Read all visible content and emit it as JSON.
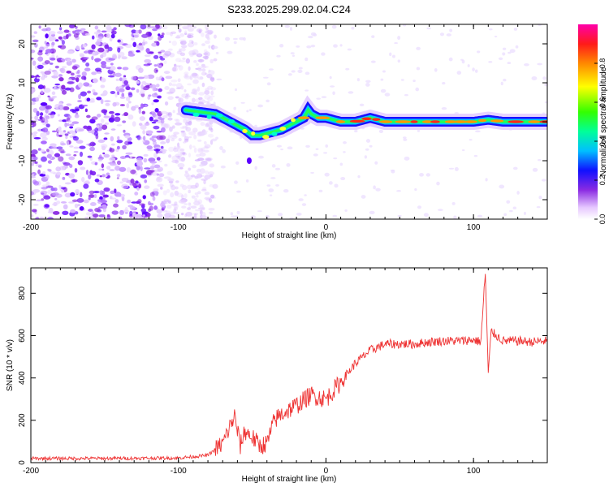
{
  "title": "S233.2025.299.02.04.C24",
  "chart_data": [
    {
      "type": "heatmap",
      "xlabel": "Height of straight line (km)",
      "ylabel": "Frequency (Hz)",
      "xlim": [
        -200,
        150
      ],
      "ylim": [
        -25,
        25
      ],
      "x_ticks": [
        -200,
        -100,
        0,
        100
      ],
      "y_ticks": [
        -20,
        -10,
        0,
        10,
        20
      ],
      "x_tick_labels": [
        "-200",
        "-100",
        "0",
        "100"
      ],
      "y_tick_labels": [
        "-20",
        "-10",
        "0",
        "10",
        "20"
      ],
      "colorbar": {
        "label": "Normalized spectral amplitude",
        "range": [
          0.0,
          1.0
        ],
        "ticks": [
          0.0,
          0.2,
          0.4,
          0.6,
          0.8
        ],
        "tick_labels": [
          "0.0",
          "0.2",
          "0.4",
          "0.6",
          "0.8"
        ]
      },
      "ridge": {
        "x": [
          -95,
          -85,
          -75,
          -65,
          -55,
          -50,
          -45,
          -40,
          -35,
          -30,
          -25,
          -20,
          -15,
          -12,
          -10,
          -5,
          0,
          10,
          20,
          30,
          40,
          50,
          60,
          70,
          80,
          90,
          100,
          110,
          120,
          130,
          140,
          150
        ],
        "y": [
          3,
          2.5,
          2,
          0,
          -2,
          -3.5,
          -3.5,
          -3,
          -2.5,
          -2,
          -1,
          0,
          1,
          3,
          2,
          1,
          1,
          0,
          0,
          1,
          0,
          0,
          0,
          0,
          0,
          0,
          0,
          0.5,
          0,
          0,
          0,
          0
        ]
      },
      "noise_region_x": [
        -200,
        -90
      ],
      "scatter_outlier": {
        "x": -52,
        "y": -10
      }
    },
    {
      "type": "line",
      "xlabel": "Height of straight line (km)",
      "ylabel": "SNR (10 * v/v)",
      "xlim": [
        -200,
        150
      ],
      "ylim": [
        0,
        920
      ],
      "x_ticks": [
        -200,
        -100,
        0,
        100
      ],
      "y_ticks": [
        0,
        200,
        400,
        600,
        800
      ],
      "x_tick_labels": [
        "-200",
        "-100",
        "0",
        "100"
      ],
      "y_tick_labels": [
        "0",
        "200",
        "400",
        "600",
        "800"
      ],
      "series": [
        {
          "name": "SNR",
          "color": "#ee3333",
          "x": [
            -200,
            -150,
            -100,
            -80,
            -70,
            -62,
            -58,
            -55,
            -50,
            -45,
            -40,
            -35,
            -30,
            -20,
            -10,
            0,
            10,
            20,
            30,
            40,
            50,
            60,
            70,
            80,
            90,
            100,
            105,
            108,
            110,
            112,
            120,
            130,
            140,
            150
          ],
          "y": [
            20,
            20,
            22,
            35,
            90,
            220,
            80,
            150,
            120,
            80,
            90,
            200,
            230,
            270,
            320,
            300,
            380,
            470,
            530,
            560,
            560,
            560,
            570,
            575,
            575,
            580,
            570,
            900,
            420,
            620,
            575,
            575,
            570,
            575
          ]
        }
      ]
    }
  ]
}
